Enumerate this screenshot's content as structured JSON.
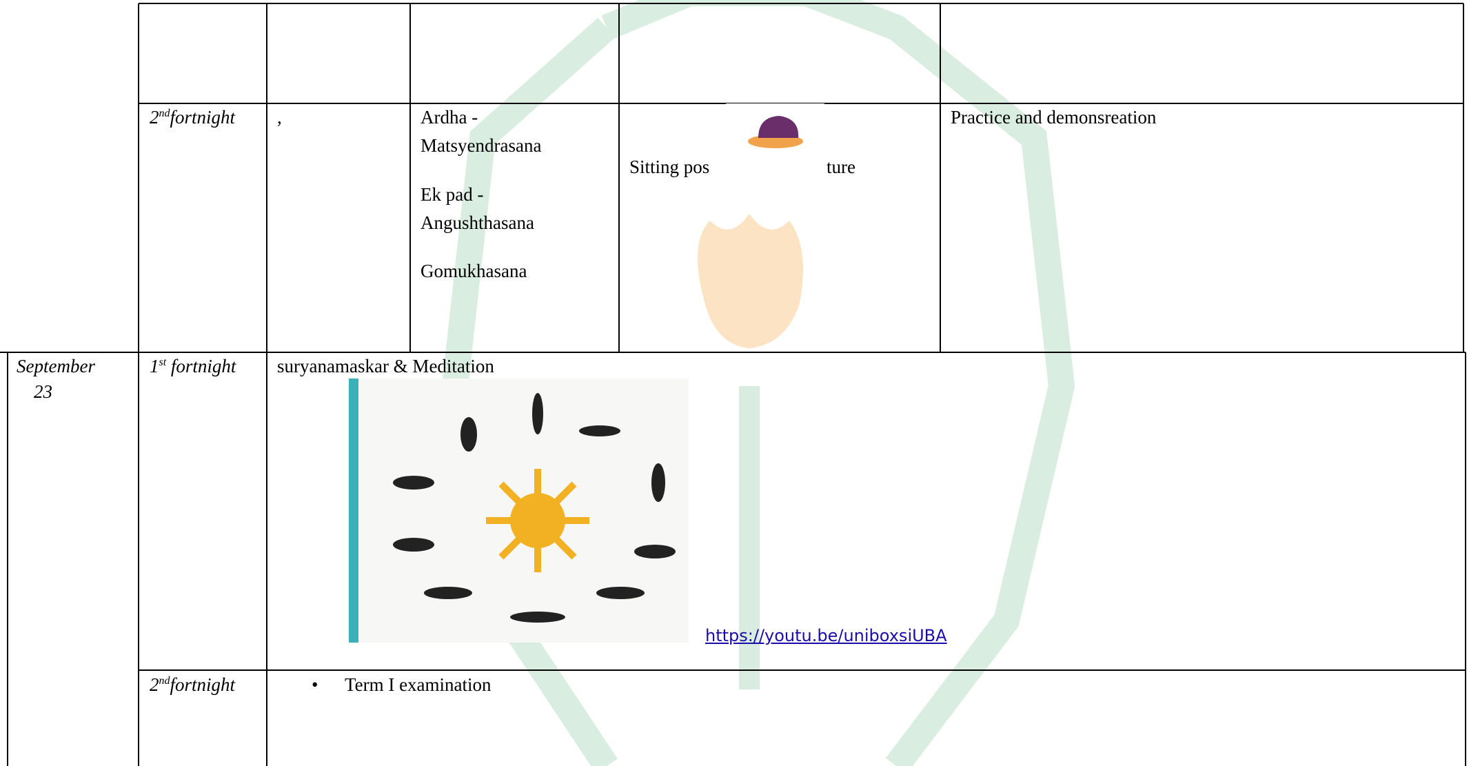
{
  "table": {
    "rows": [
      {
        "fortnight": [
          "2",
          "nd",
          "fortnight"
        ],
        "topic": ",",
        "asanas": [
          "Ardha -",
          "Matsyendrasana",
          "Ek pad -",
          "Angushthasana",
          "Gomukhasana"
        ],
        "posture": [
          "Sitting pos",
          "ture"
        ],
        "activity": "Practice and demonsreation"
      },
      {
        "month": [
          "September",
          "23"
        ],
        "fortnight": [
          "1",
          "st",
          " fortnight"
        ],
        "topic": "suryanamaskar & Meditation",
        "link": "https://youtu.be/uniboxsiUBA"
      },
      {
        "fortnight": [
          "2",
          "nd",
          "fortnight"
        ],
        "items": [
          "Term I examination"
        ]
      }
    ]
  }
}
